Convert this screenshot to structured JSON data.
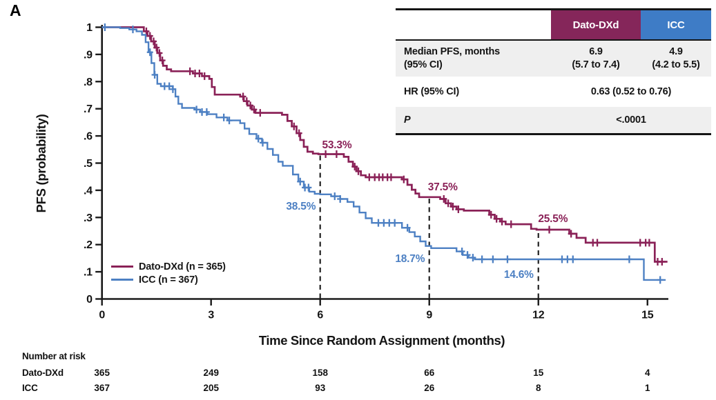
{
  "panel_label": "A",
  "colors": {
    "dato": "#8a2157",
    "icc": "#4d80c3",
    "header_dato": "#85265a",
    "header_icc": "#3e7cc6",
    "row_gray": "#efefef",
    "axis": "#1a1a1a",
    "dash": "#222222"
  },
  "inset_table": {
    "header": {
      "col_dato": "Dato-DXd",
      "col_icc": "ICC"
    },
    "median_row": {
      "label_line1": "Median PFS, months",
      "label_line2": "(95% CI)",
      "dato_line1": "6.9",
      "dato_line2": "(5.7 to 7.4)",
      "icc_line1": "4.9",
      "icc_line2": "(4.2 to 5.5)"
    },
    "hr_row": {
      "label": "HR (95% CI)",
      "value": "0.63 (0.52 to 0.76)"
    },
    "p_row": {
      "label": "P",
      "value": "<.0001"
    }
  },
  "legend": {
    "items": [
      {
        "label": "Dato-DXd (n = 365)",
        "series": "dato"
      },
      {
        "label": "ICC (n = 367)",
        "series": "icc"
      }
    ]
  },
  "risk_table": {
    "title": "Number at risk",
    "rows": [
      {
        "label": "Dato-DXd",
        "values": [
          "365",
          "249",
          "158",
          "66",
          "15",
          "4"
        ]
      },
      {
        "label": "ICC",
        "values": [
          "367",
          "205",
          "93",
          "26",
          "8",
          "1"
        ]
      }
    ]
  },
  "chart_data": {
    "type": "line",
    "subtype": "kaplan-meier-step",
    "title": "",
    "xlabel": "Time Since Random Assignment (months)",
    "ylabel": "PFS (probability)",
    "xlim": [
      0,
      15.7
    ],
    "ylim": [
      0,
      1
    ],
    "grid": false,
    "legend_position": "lower-left-inside",
    "xticks": [
      0,
      3,
      6,
      9,
      12,
      15
    ],
    "yticks": [
      {
        "value": 0,
        "label": "0"
      },
      {
        "value": 0.1,
        "label": ".1"
      },
      {
        "value": 0.2,
        "label": ".2"
      },
      {
        "value": 0.3,
        "label": ".3"
      },
      {
        "value": 0.4,
        "label": ".4"
      },
      {
        "value": 0.5,
        "label": ".5"
      },
      {
        "value": 0.6,
        "label": ".6"
      },
      {
        "value": 0.7,
        "label": ".7"
      },
      {
        "value": 0.8,
        "label": ".8"
      },
      {
        "value": 0.9,
        "label": ".9"
      },
      {
        "value": 1,
        "label": "1"
      }
    ],
    "series": [
      {
        "name": "Dato-DXd",
        "n": 365,
        "color": "#8a2157",
        "median_pfs_months": 6.9,
        "median_pfs_ci": "5.7 to 7.4",
        "points": [
          [
            0,
            1
          ],
          [
            1.05,
            1
          ],
          [
            1.15,
            0.985
          ],
          [
            1.25,
            0.968
          ],
          [
            1.35,
            0.948
          ],
          [
            1.45,
            0.925
          ],
          [
            1.52,
            0.905
          ],
          [
            1.6,
            0.878
          ],
          [
            1.68,
            0.858
          ],
          [
            1.78,
            0.845
          ],
          [
            1.9,
            0.838
          ],
          [
            2.5,
            0.83
          ],
          [
            2.75,
            0.82
          ],
          [
            2.95,
            0.81
          ],
          [
            3.02,
            0.78
          ],
          [
            3.1,
            0.752
          ],
          [
            3.8,
            0.745
          ],
          [
            3.9,
            0.728
          ],
          [
            4.0,
            0.712
          ],
          [
            4.12,
            0.697
          ],
          [
            4.22,
            0.685
          ],
          [
            4.95,
            0.678
          ],
          [
            5.1,
            0.655
          ],
          [
            5.22,
            0.635
          ],
          [
            5.35,
            0.61
          ],
          [
            5.45,
            0.585
          ],
          [
            5.55,
            0.56
          ],
          [
            5.65,
            0.542
          ],
          [
            5.8,
            0.535
          ],
          [
            5.95,
            0.533
          ],
          [
            6.65,
            0.523
          ],
          [
            6.78,
            0.505
          ],
          [
            6.9,
            0.487
          ],
          [
            7.0,
            0.47
          ],
          [
            7.12,
            0.455
          ],
          [
            7.25,
            0.448
          ],
          [
            8.25,
            0.44
          ],
          [
            8.4,
            0.42
          ],
          [
            8.52,
            0.402
          ],
          [
            8.62,
            0.388
          ],
          [
            8.72,
            0.375
          ],
          [
            9.3,
            0.368
          ],
          [
            9.45,
            0.352
          ],
          [
            9.6,
            0.34
          ],
          [
            9.75,
            0.33
          ],
          [
            9.95,
            0.325
          ],
          [
            10.65,
            0.31
          ],
          [
            10.8,
            0.295
          ],
          [
            10.95,
            0.285
          ],
          [
            11.1,
            0.275
          ],
          [
            11.8,
            0.258
          ],
          [
            11.95,
            0.255
          ],
          [
            12.85,
            0.24
          ],
          [
            13.05,
            0.225
          ],
          [
            13.3,
            0.207
          ],
          [
            15.2,
            0.137
          ],
          [
            15.55,
            0.137
          ]
        ],
        "censor_months": [
          1.22,
          1.32,
          1.42,
          1.5,
          1.58,
          1.66,
          2.42,
          2.56,
          2.68,
          2.82,
          3.88,
          3.98,
          4.08,
          4.18,
          4.35,
          5.28,
          5.42,
          6.15,
          6.45,
          6.95,
          7.05,
          7.35,
          7.5,
          7.62,
          7.72,
          7.85,
          7.95,
          8.3,
          9.4,
          9.52,
          9.65,
          9.8,
          10.7,
          10.85,
          11.0,
          11.25,
          12.3,
          12.9,
          13.5,
          13.62,
          14.8,
          14.95,
          15.05,
          15.28,
          15.4
        ]
      },
      {
        "name": "ICC",
        "n": 367,
        "color": "#4d80c3",
        "median_pfs_months": 4.9,
        "median_pfs_ci": "4.2 to 5.5",
        "points": [
          [
            0,
            1
          ],
          [
            0.5,
            0.997
          ],
          [
            0.75,
            0.992
          ],
          [
            0.95,
            0.985
          ],
          [
            1.1,
            0.972
          ],
          [
            1.2,
            0.945
          ],
          [
            1.28,
            0.908
          ],
          [
            1.36,
            0.868
          ],
          [
            1.44,
            0.825
          ],
          [
            1.52,
            0.792
          ],
          [
            1.62,
            0.783
          ],
          [
            1.95,
            0.772
          ],
          [
            2.02,
            0.745
          ],
          [
            2.1,
            0.718
          ],
          [
            2.2,
            0.703
          ],
          [
            2.55,
            0.697
          ],
          [
            2.7,
            0.688
          ],
          [
            2.9,
            0.68
          ],
          [
            3.15,
            0.668
          ],
          [
            3.45,
            0.657
          ],
          [
            3.8,
            0.647
          ],
          [
            3.92,
            0.627
          ],
          [
            4.05,
            0.607
          ],
          [
            4.25,
            0.59
          ],
          [
            4.4,
            0.575
          ],
          [
            4.55,
            0.552
          ],
          [
            4.7,
            0.53
          ],
          [
            4.85,
            0.505
          ],
          [
            4.97,
            0.49
          ],
          [
            5.25,
            0.458
          ],
          [
            5.4,
            0.432
          ],
          [
            5.55,
            0.41
          ],
          [
            5.7,
            0.395
          ],
          [
            5.85,
            0.387
          ],
          [
            6.0,
            0.385
          ],
          [
            6.3,
            0.378
          ],
          [
            6.55,
            0.368
          ],
          [
            6.75,
            0.357
          ],
          [
            6.92,
            0.34
          ],
          [
            7.08,
            0.318
          ],
          [
            7.25,
            0.297
          ],
          [
            7.42,
            0.28
          ],
          [
            8.25,
            0.262
          ],
          [
            8.45,
            0.246
          ],
          [
            8.6,
            0.23
          ],
          [
            8.75,
            0.212
          ],
          [
            8.9,
            0.195
          ],
          [
            9.05,
            0.187
          ],
          [
            9.75,
            0.175
          ],
          [
            9.92,
            0.162
          ],
          [
            10.08,
            0.152
          ],
          [
            10.25,
            0.146
          ],
          [
            14.88,
            0.146
          ],
          [
            14.9,
            0.07
          ],
          [
            15.5,
            0.07
          ]
        ],
        "censor_months": [
          0.08,
          0.85,
          1.32,
          1.45,
          1.72,
          1.85,
          1.95,
          2.6,
          2.75,
          2.88,
          3.35,
          3.5,
          4.3,
          4.42,
          5.45,
          5.58,
          5.68,
          6.4,
          6.55,
          7.6,
          7.75,
          7.9,
          8.05,
          8.4,
          9.9,
          10.05,
          10.2,
          10.45,
          10.75,
          11.15,
          12.65,
          12.8,
          12.95,
          14.5,
          15.35
        ]
      }
    ],
    "hr": "0.63 (0.52 to 0.76)",
    "p_value": "<.0001",
    "dashed_lines": [
      {
        "month": 6,
        "to_prob": 0.533
      },
      {
        "month": 9,
        "to_prob": 0.375
      },
      {
        "month": 12,
        "to_prob": 0.255
      }
    ],
    "annotations": [
      {
        "text": "53.3%",
        "series": "dato",
        "month": 6.46,
        "prob": 0.567
      },
      {
        "text": "38.5%",
        "series": "icc",
        "month": 5.47,
        "prob": 0.341
      },
      {
        "text": "37.5%",
        "series": "dato",
        "month": 9.37,
        "prob": 0.412
      },
      {
        "text": "18.7%",
        "series": "icc",
        "month": 8.47,
        "prob": 0.148
      },
      {
        "text": "25.5%",
        "series": "dato",
        "month": 12.4,
        "prob": 0.296
      },
      {
        "text": "14.6%",
        "series": "icc",
        "month": 11.46,
        "prob": 0.09
      }
    ]
  }
}
